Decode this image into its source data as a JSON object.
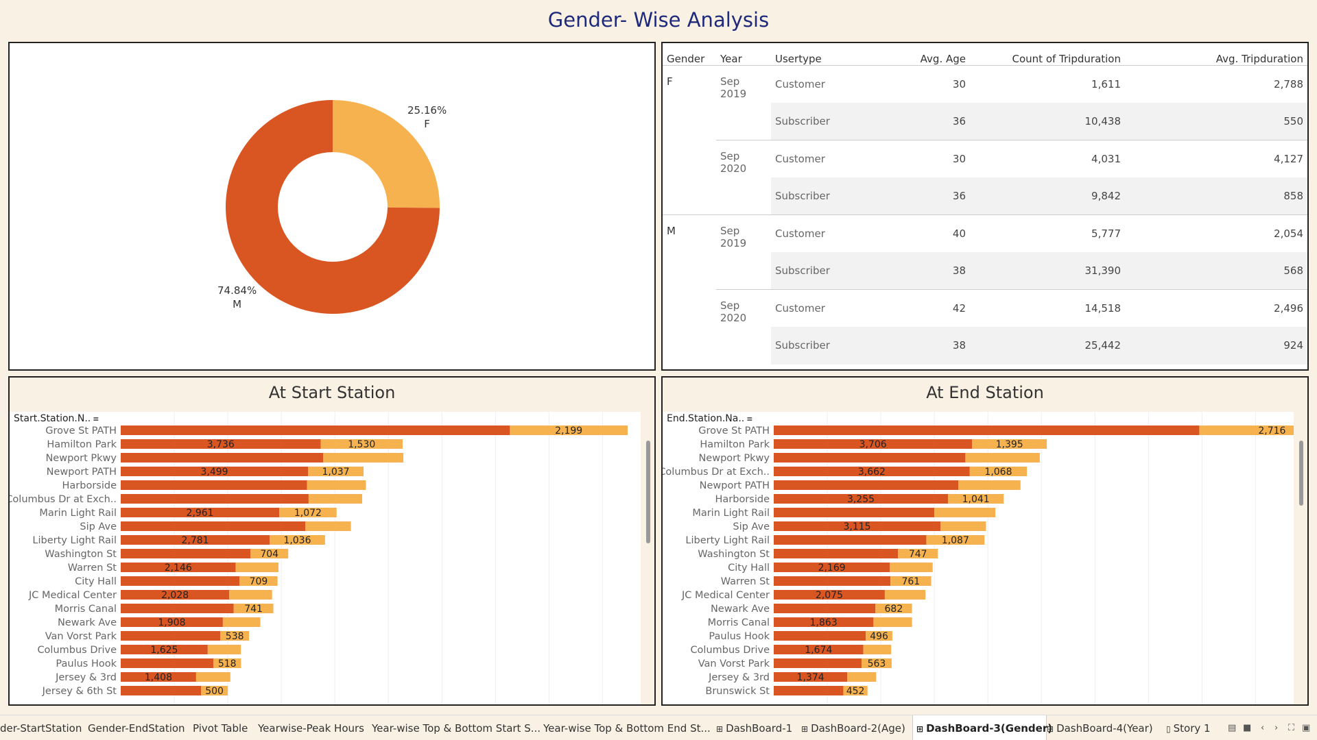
{
  "title": "Gender- Wise Analysis",
  "colors": {
    "male": "#d95623",
    "female": "#f7b250",
    "title": "#1f2a7a"
  },
  "donut": {
    "slices": [
      {
        "gender": "F",
        "percent": 25.16,
        "label": "25.16%",
        "color": "#f7b250"
      },
      {
        "gender": "M",
        "percent": 74.84,
        "label": "74.84%",
        "color": "#d95623"
      }
    ]
  },
  "table": {
    "headers": [
      "Gender",
      "Year",
      "Usertype",
      "Avg. Age",
      "Count of Tripduration",
      "Avg. Tripduration"
    ],
    "rows": [
      {
        "gender": "F",
        "year": "Sep 2019",
        "usertype": "Customer",
        "avg_age": "30",
        "count": "1,611",
        "avg_trip": "2,788"
      },
      {
        "gender": "",
        "year": "",
        "usertype": "Subscriber",
        "avg_age": "36",
        "count": "10,438",
        "avg_trip": "550"
      },
      {
        "gender": "",
        "year": "Sep 2020",
        "usertype": "Customer",
        "avg_age": "30",
        "count": "4,031",
        "avg_trip": "4,127"
      },
      {
        "gender": "",
        "year": "",
        "usertype": "Subscriber",
        "avg_age": "36",
        "count": "9,842",
        "avg_trip": "858"
      },
      {
        "gender": "M",
        "year": "Sep 2019",
        "usertype": "Customer",
        "avg_age": "40",
        "count": "5,777",
        "avg_trip": "2,054"
      },
      {
        "gender": "",
        "year": "",
        "usertype": "Subscriber",
        "avg_age": "38",
        "count": "31,390",
        "avg_trip": "568"
      },
      {
        "gender": "",
        "year": "Sep 2020",
        "usertype": "Customer",
        "avg_age": "42",
        "count": "14,518",
        "avg_trip": "2,496"
      },
      {
        "gender": "",
        "year": "",
        "usertype": "Subscriber",
        "avg_age": "38",
        "count": "25,442",
        "avg_trip": "924"
      }
    ]
  },
  "start_station": {
    "title": "At Start Station",
    "field_header": "Start.Station.N..",
    "max_total": 9700
  },
  "end_station": {
    "title": "At End Station",
    "field_header": "End.Station.Na..",
    "max_total": 9700
  },
  "chart_data": [
    {
      "type": "bar",
      "title": "At Start Station",
      "orientation": "horizontal",
      "stacked": true,
      "categories": [
        "Grove St PATH",
        "Hamilton Park",
        "Newport Pkwy",
        "Newport PATH",
        "Harborside",
        "Columbus Dr at Exch..",
        "Marin Light Rail",
        "Sip Ave",
        "Liberty Light Rail",
        "Washington St",
        "Warren St",
        "City Hall",
        "JC Medical Center",
        "Morris Canal",
        "Newark Ave",
        "Van Vorst Park",
        "Columbus Drive",
        "Paulus Hook",
        "Jersey & 3rd",
        "Jersey & 6th St"
      ],
      "series": [
        {
          "name": "M",
          "values": [
            7270,
            3736,
            3780,
            3499,
            3480,
            3510,
            2961,
            3450,
            2781,
            2425,
            2146,
            2220,
            2028,
            2110,
            1908,
            1860,
            1625,
            1730,
            1408,
            1500
          ],
          "labels": [
            "",
            "3,736",
            "",
            "3,499",
            "",
            "",
            "2,961",
            "",
            "2,781",
            "",
            "2,146",
            "",
            "2,028",
            "",
            "1,908",
            "",
            "1,625",
            "",
            "1,408",
            ""
          ]
        },
        {
          "name": "F",
          "values": [
            2199,
            1530,
            1500,
            1037,
            1100,
            1000,
            1072,
            850,
            1036,
            704,
            800,
            709,
            800,
            741,
            700,
            538,
            620,
            518,
            640,
            500
          ],
          "labels": [
            "2,199",
            "1,530",
            "",
            "1,037",
            "",
            "",
            "1,072",
            "",
            "1,036",
            "704",
            "",
            "709",
            "",
            "741",
            "",
            "538",
            "",
            "518",
            "",
            "500"
          ]
        }
      ]
    },
    {
      "type": "bar",
      "title": "At End Station",
      "orientation": "horizontal",
      "stacked": true,
      "categories": [
        "Grove St PATH",
        "Hamilton Park",
        "Newport Pkwy",
        "Columbus Dr at Exch..",
        "Newport PATH",
        "Harborside",
        "Marin Light Rail",
        "Sip Ave",
        "Liberty Light Rail",
        "Washington St",
        "City Hall",
        "Warren St",
        "JC Medical Center",
        "Newark Ave",
        "Morris Canal",
        "Paulus Hook",
        "Columbus Drive",
        "Van Vorst Park",
        "Jersey & 3rd",
        "Brunswick St"
      ],
      "series": [
        {
          "name": "M",
          "values": [
            7950,
            3706,
            3580,
            3662,
            3450,
            3255,
            3000,
            3115,
            2850,
            2320,
            2169,
            2180,
            2075,
            1900,
            1863,
            1720,
            1674,
            1640,
            1374,
            1300
          ],
          "labels": [
            "",
            "3,706",
            "",
            "3,662",
            "",
            "3,255",
            "",
            "3,115",
            "",
            "",
            "2,169",
            "",
            "2,075",
            "",
            "1,863",
            "",
            "1,674",
            "",
            "1,374",
            ""
          ]
        },
        {
          "name": "F",
          "values": [
            2716,
            1395,
            1390,
            1068,
            1160,
            1041,
            1140,
            850,
            1087,
            747,
            800,
            761,
            760,
            682,
            720,
            496,
            520,
            563,
            540,
            452
          ],
          "labels": [
            "2,716",
            "1,395",
            "",
            "1,068",
            "",
            "1,041",
            "",
            "",
            "1,087",
            "747",
            "",
            "761",
            "",
            "682",
            "",
            "496",
            "",
            "563",
            "",
            "452"
          ]
        }
      ]
    }
  ],
  "tabs": [
    {
      "label": "der-StartStation",
      "icon": "",
      "active": false
    },
    {
      "label": "Gender-EndStation",
      "icon": "",
      "active": false
    },
    {
      "label": "Pivot Table",
      "icon": "",
      "active": false
    },
    {
      "label": "Yearwise-Peak Hours",
      "icon": "",
      "active": false
    },
    {
      "label": "Year-wise Top & Bottom Start S...",
      "icon": "",
      "active": false
    },
    {
      "label": "Year-wise Top & Bottom End St...",
      "icon": "",
      "active": false
    },
    {
      "label": "DashBoard-1",
      "icon": "dashboard-icon",
      "active": false
    },
    {
      "label": "DashBoard-2(Age)",
      "icon": "dashboard-icon",
      "active": false
    },
    {
      "label": "DashBoard-3(Gender)",
      "icon": "dashboard-icon",
      "active": true
    },
    {
      "label": "DashBoard-4(Year)",
      "icon": "dashboard-icon",
      "active": false
    },
    {
      "label": "Story 1",
      "icon": "story-icon",
      "active": false
    }
  ]
}
